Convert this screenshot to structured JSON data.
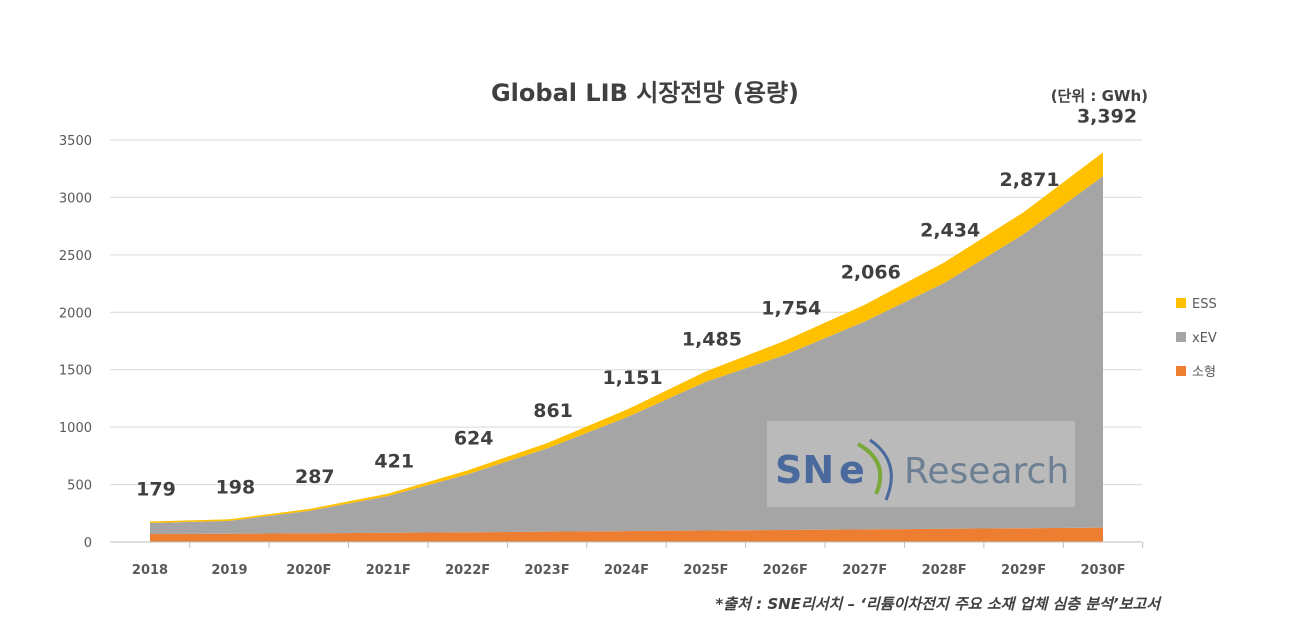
{
  "chart_data": {
    "type": "area",
    "title": "Global LIB 시장전망 (용량)",
    "unit_note": "(단위 : GWh)",
    "categories": [
      "2018",
      "2019",
      "2020F",
      "2021F",
      "2022F",
      "2023F",
      "2024F",
      "2025F",
      "2026F",
      "2027F",
      "2028F",
      "2029F",
      "2030F"
    ],
    "series": [
      {
        "name": "소형",
        "color": "#ED7D31",
        "values": [
          70,
          72,
          76,
          80,
          85,
          90,
          95,
          100,
          105,
          110,
          115,
          120,
          125
        ]
      },
      {
        "name": "xEV",
        "color": "#A5A5A5",
        "values": [
          95,
          112,
          195,
          320,
          505,
          725,
          990,
          1295,
          1525,
          1810,
          2140,
          2560,
          3060
        ]
      },
      {
        "name": "ESS",
        "color": "#FFC000",
        "values": [
          14,
          14,
          16,
          21,
          34,
          46,
          66,
          90,
          124,
          146,
          179,
          191,
          207
        ]
      }
    ],
    "totals": [
      179,
      198,
      287,
      421,
      624,
      861,
      1151,
      1485,
      1754,
      2066,
      2434,
      2871,
      3392
    ],
    "total_labels": [
      "179",
      "198",
      "287",
      "421",
      "624",
      "861",
      "1,151",
      "1,485",
      "1,754",
      "2,066",
      "2,434",
      "2,871",
      "3,392"
    ],
    "y_ticks": [
      0,
      500,
      1000,
      1500,
      2000,
      2500,
      3000,
      3500
    ],
    "ylim": [
      0,
      3500
    ],
    "grid": true,
    "legend_position": "right",
    "legend_order": [
      "ESS",
      "xEV",
      "소형"
    ],
    "watermark": "SNE Research",
    "source_note": "*출처 : SNE리서치 – ‘리튬이차전지 주요 소재 업체 심층 분석’보고서"
  }
}
